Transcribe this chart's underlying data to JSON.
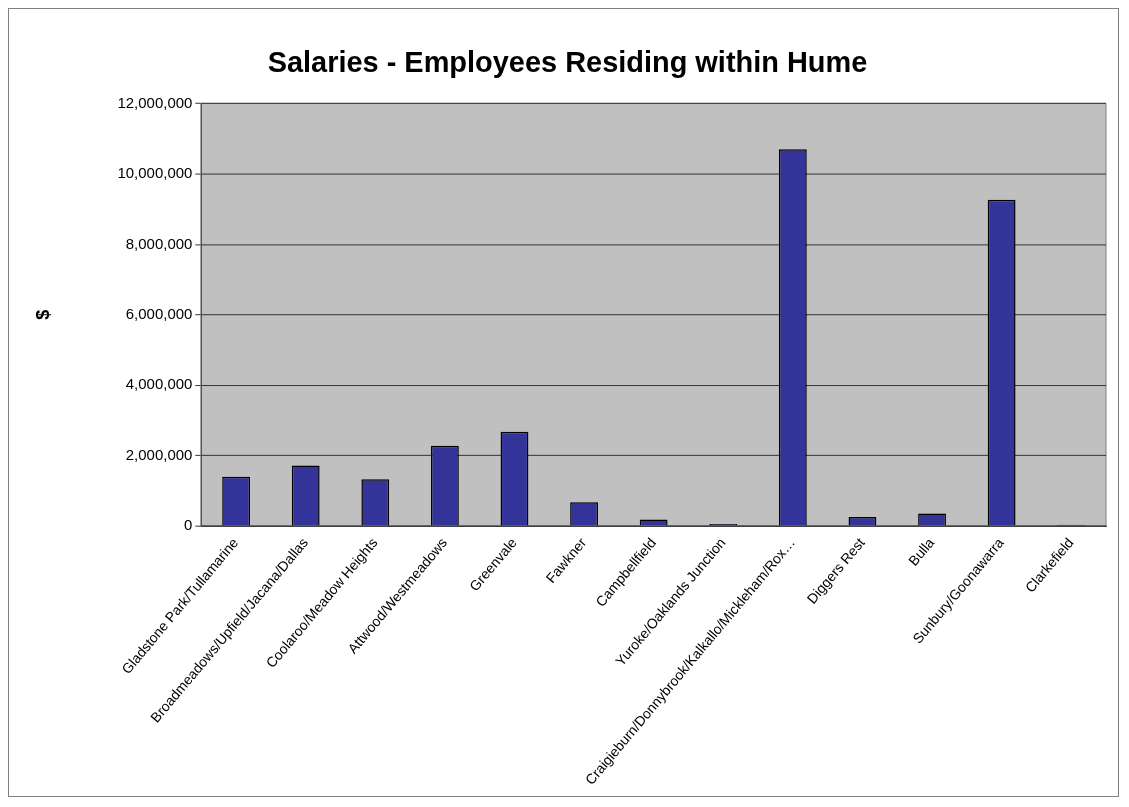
{
  "chart_data": {
    "type": "bar",
    "title": "Salaries - Employees Residing within Hume",
    "ylabel": "$",
    "categories": [
      "Gladstone Park/Tullamarine",
      "Broadmeadows/Upfield/Jacana/Dallas",
      "Coolaroo/Meadow Heights",
      "Attwood/Westmeadows",
      "Greenvale",
      "Fawkner",
      "Campbellfield",
      "Yuroke/Oaklands Junction",
      "Craigieburn/Donnybrook/Kalkallo/Mickleham/Rox…",
      "Diggers Rest",
      "Bulla",
      "Sunbury/Goonawarra",
      "Clarkefield"
    ],
    "values": [
      1400000,
      1720000,
      1330000,
      2280000,
      2680000,
      680000,
      190000,
      60000,
      10700000,
      260000,
      360000,
      9270000,
      40000
    ],
    "color": "#333399",
    "ylim": [
      0,
      12000000
    ],
    "yticks": [
      0,
      {
        "value": 2000000,
        "label": "2,000,000"
      },
      {
        "value": 4000000,
        "label": "4,000,000"
      },
      {
        "value": 6000000,
        "label": "6,000,000"
      },
      {
        "value": 8000000,
        "label": "8,000,000"
      },
      {
        "value": 10000000,
        "label": "10,000,000"
      },
      {
        "value": 12000000,
        "label": "12,000,000"
      }
    ],
    "grid": "y",
    "legend": false
  }
}
